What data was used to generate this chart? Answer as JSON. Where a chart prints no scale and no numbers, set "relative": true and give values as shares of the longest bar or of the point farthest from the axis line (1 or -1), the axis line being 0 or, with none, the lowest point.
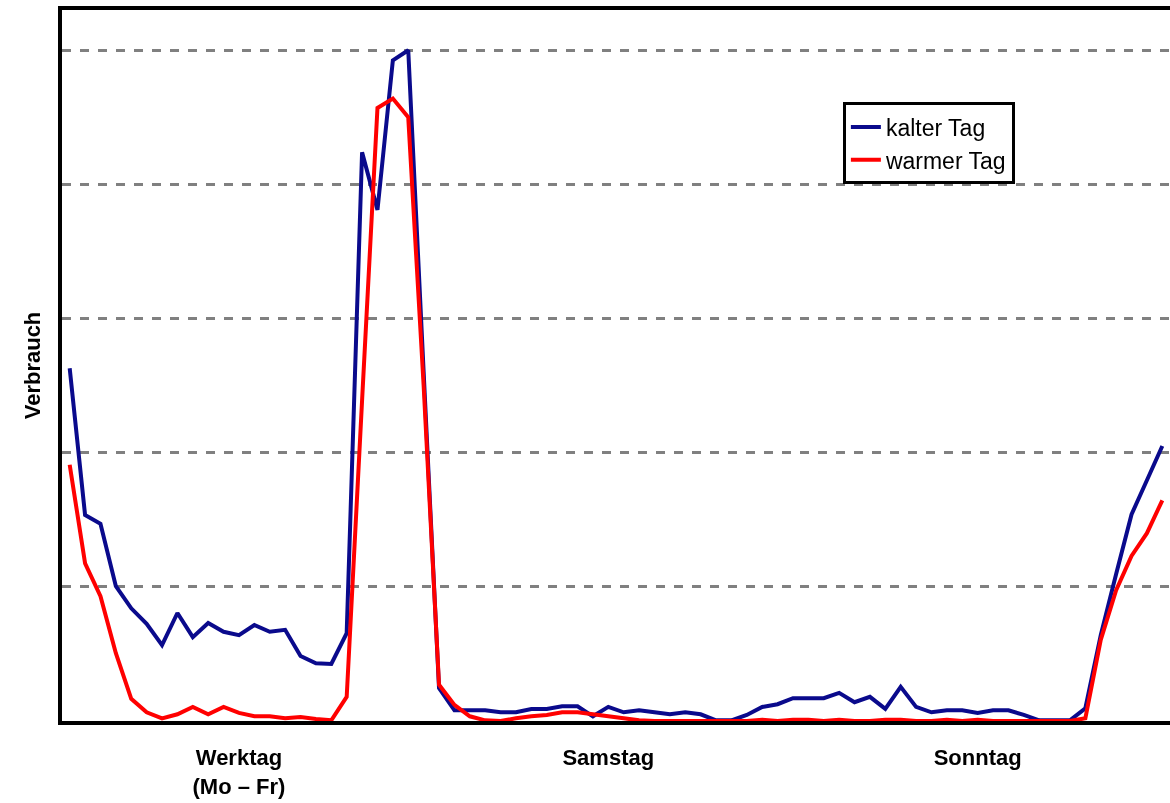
{
  "chart_data": {
    "type": "line",
    "relative": true,
    "ylabel": "Verbrauch",
    "grid": "y",
    "legend": "top right",
    "categories": [
      null,
      null,
      null,
      null,
      null,
      null,
      null,
      null,
      null,
      null,
      null,
      "Werktag\n(Mo – Fr)",
      null,
      null,
      null,
      null,
      null,
      null,
      null,
      null,
      null,
      null,
      null,
      null,
      null,
      null,
      null,
      null,
      null,
      null,
      null,
      null,
      null,
      null,
      null,
      "Samstag",
      null,
      null,
      null,
      null,
      null,
      null,
      null,
      null,
      null,
      null,
      null,
      null,
      null,
      null,
      null,
      null,
      null,
      null,
      null,
      null,
      null,
      null,
      null,
      "Sonntag",
      null,
      null,
      null,
      null,
      null,
      null,
      null,
      null,
      null,
      null,
      null,
      null
    ],
    "series": [
      {
        "name": "kalter Tag",
        "color": "#0a0a8c",
        "values": [
          0.526,
          0.307,
          0.294,
          0.201,
          0.168,
          0.145,
          0.113,
          0.161,
          0.125,
          0.146,
          0.133,
          0.128,
          0.143,
          0.133,
          0.136,
          0.097,
          0.086,
          0.085,
          0.131,
          0.848,
          0.762,
          0.985,
          1,
          0.52,
          0.049,
          0.016,
          0.016,
          0.016,
          0.013,
          0.013,
          0.018,
          0.018,
          0.022,
          0.022,
          0.007,
          0.021,
          0.013,
          0.016,
          0.013,
          0.01,
          0.013,
          0.01,
          0.001,
          0.001,
          0.009,
          0.021,
          0.025,
          0.034,
          0.034,
          0.034,
          0.042,
          0.028,
          0.036,
          0.018,
          0.051,
          0.021,
          0.013,
          0.016,
          0.016,
          0.012,
          0.016,
          0.016,
          0.009,
          0.001,
          0.001,
          0.001,
          0.019,
          0.128,
          0.219,
          0.308,
          0.359,
          0.41
        ]
      },
      {
        "name": "warmer Tag",
        "color": "#ff0000",
        "values": [
          0.382,
          0.235,
          0.186,
          0.101,
          0.033,
          0.013,
          0.004,
          0.01,
          0.021,
          0.01,
          0.021,
          0.012,
          0.007,
          0.007,
          0.004,
          0.006,
          0.003,
          0.001,
          0.036,
          0.478,
          0.914,
          0.928,
          0.9,
          0.5,
          0.054,
          0.024,
          0.007,
          0.001,
          0,
          0.004,
          0.007,
          0.009,
          0.013,
          0.013,
          0.01,
          0.007,
          0.004,
          0.001,
          0,
          0,
          0,
          0,
          0,
          0,
          0,
          0.002,
          0,
          0.002,
          0.002,
          0,
          0.002,
          0,
          0,
          0.002,
          0.002,
          0,
          0,
          0.002,
          0,
          0.002,
          0,
          0,
          0,
          0,
          0,
          0,
          0.004,
          0.121,
          0.195,
          0.246,
          0.28,
          0.329
        ]
      }
    ]
  }
}
